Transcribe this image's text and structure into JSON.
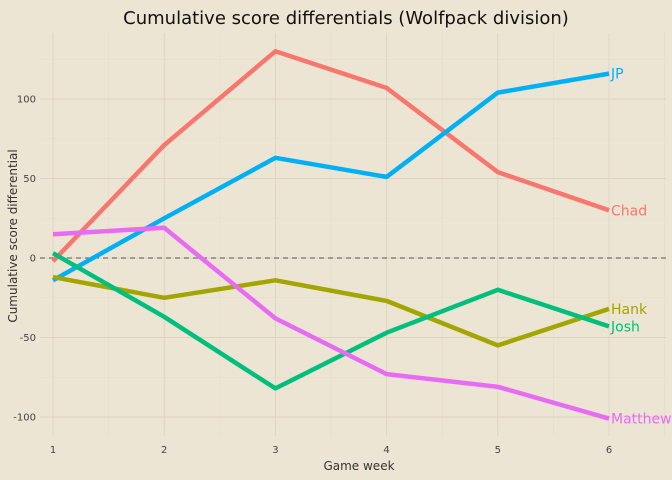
{
  "chart_data": {
    "type": "line",
    "title": "Cumulative score differentials (Wolfpack division)",
    "xlabel": "Game week",
    "ylabel": "Cumulative score differential",
    "x": [
      1,
      2,
      3,
      4,
      5,
      6
    ],
    "x_ticks": [
      "1",
      "2",
      "3",
      "4",
      "5",
      "6"
    ],
    "y_ticks": [
      "-100",
      "-50",
      "0",
      "50",
      "100"
    ],
    "xlim": [
      1,
      6.5
    ],
    "ylim": [
      -108,
      132
    ],
    "reference_line": 0,
    "grid": true,
    "legend": "direct labels at line ends",
    "series": [
      {
        "name": "Chad",
        "color": "#f8766d",
        "values": [
          -2,
          71,
          130,
          107,
          54,
          30
        ]
      },
      {
        "name": "JP",
        "color": "#00b0f6",
        "values": [
          -14,
          25,
          63,
          51,
          104,
          116
        ]
      },
      {
        "name": "Hank",
        "color": "#a3a500",
        "values": [
          -12,
          -25,
          -14,
          -27,
          -55,
          -32
        ]
      },
      {
        "name": "Josh",
        "color": "#00bf7d",
        "values": [
          3,
          -37,
          -82,
          -47,
          -20,
          -43
        ]
      },
      {
        "name": "Matthew",
        "color": "#e76bf3",
        "values": [
          15,
          19,
          -38,
          -73,
          -81,
          -101
        ]
      }
    ]
  }
}
